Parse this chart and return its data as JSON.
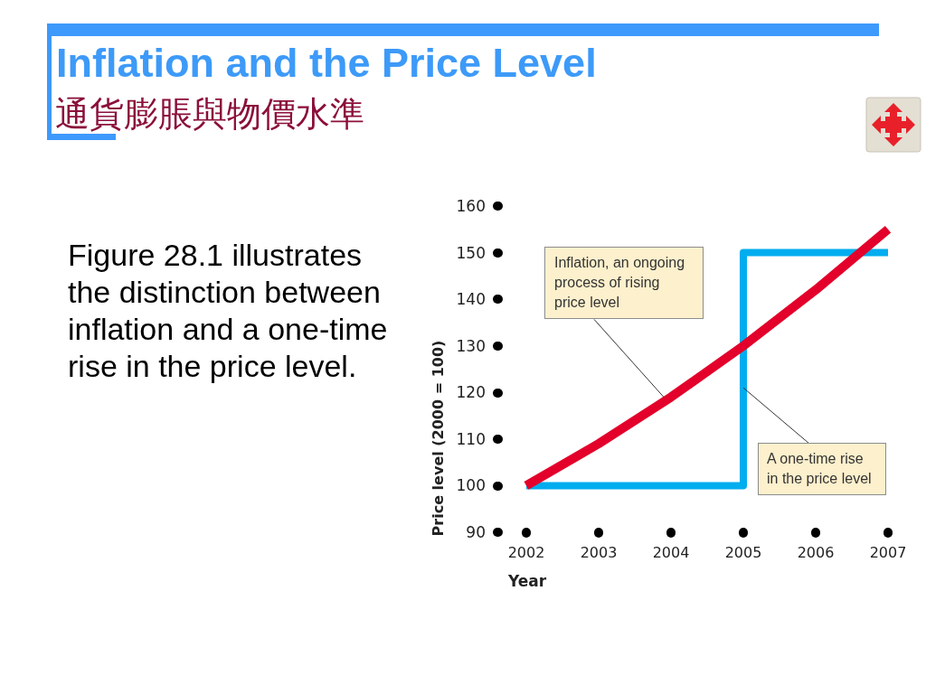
{
  "chart_data": {
    "type": "line",
    "title": "Inflation and the Price Level",
    "subtitle": "通貨膨脹與物價水準",
    "xlabel": "Year",
    "ylabel": "Price level (2000 = 100)",
    "x": [
      2002,
      2003,
      2004,
      2005,
      2006,
      2007
    ],
    "series": [
      {
        "type": "step",
        "color": "#00adee",
        "x": [
          2002,
          2005,
          2007
        ],
        "values": [
          100,
          150,
          150
        ]
      },
      {
        "type": "line",
        "color": "#e3002b",
        "values": [
          100,
          109,
          119,
          130,
          142,
          155
        ]
      }
    ],
    "xlim": [
      2002,
      2007
    ],
    "xticks": [
      2002,
      2003,
      2004,
      2005,
      2006,
      2007
    ],
    "ylim": [
      90,
      160
    ],
    "yticks": [
      90,
      100,
      110,
      120,
      130,
      140,
      150,
      160
    ],
    "annotations": [
      "Figure 28.1 illustrates the distinction between inflation and a one-time rise in the price level.",
      {
        "text": "Inflation, an ongoing process of rising price level",
        "x": 2003.9,
        "y": 119
      },
      {
        "text": "A one-time rise in the price level",
        "x": 2005,
        "y": 121
      }
    ]
  }
}
